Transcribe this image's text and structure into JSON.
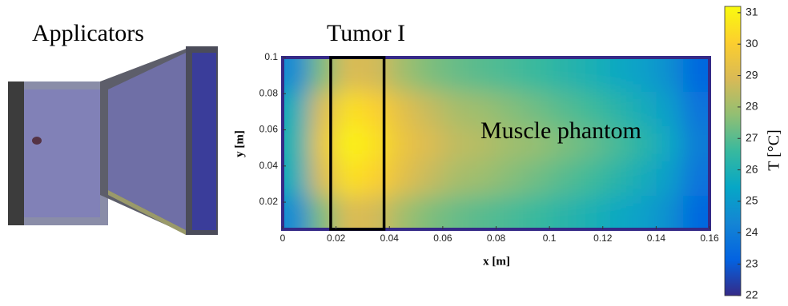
{
  "chart_data": {
    "type": "heatmap",
    "labels": {
      "applicators": "Applicators",
      "tumor": "Tumor I",
      "phantom": "Muscle phantom"
    },
    "xlabel": "x [m]",
    "ylabel": "y [m]",
    "colorbar_label": "T [°C]",
    "x": [
      0.005,
      0.015,
      0.025,
      0.035,
      0.045,
      0.055,
      0.065,
      0.075,
      0.085,
      0.095,
      0.105,
      0.115,
      0.125,
      0.135,
      0.145,
      0.155
    ],
    "y": [
      0.0145,
      0.033,
      0.0525,
      0.072,
      0.0905
    ],
    "z": [
      [
        24.5,
        27.5,
        29.0,
        28.8,
        28.0,
        27.5,
        27.2,
        27.0,
        26.8,
        26.6,
        26.3,
        26.0,
        25.6,
        25.2,
        24.6,
        23.3
      ],
      [
        25.8,
        29.0,
        30.5,
        30.1,
        29.2,
        28.6,
        28.1,
        27.9,
        27.6,
        27.3,
        27.0,
        26.7,
        26.3,
        25.8,
        25.1,
        23.7
      ],
      [
        26.0,
        29.5,
        31.0,
        30.5,
        29.5,
        29.0,
        28.5,
        28.3,
        28.0,
        27.8,
        27.5,
        27.2,
        26.8,
        26.3,
        25.5,
        24.0
      ],
      [
        25.8,
        29.0,
        30.5,
        30.1,
        29.2,
        28.6,
        28.1,
        27.9,
        27.6,
        27.3,
        27.0,
        26.7,
        26.3,
        25.8,
        25.1,
        23.7
      ],
      [
        24.5,
        27.5,
        29.0,
        28.8,
        28.0,
        27.5,
        27.2,
        27.0,
        26.8,
        26.6,
        26.3,
        26.0,
        25.6,
        25.2,
        24.6,
        23.3
      ]
    ],
    "tumor_x": [
      0.018,
      0.038
    ],
    "xlim": [
      0,
      0.16
    ],
    "xticks": [
      0,
      0.02,
      0.04,
      0.06,
      0.08,
      0.1,
      0.12,
      0.14,
      0.16
    ],
    "ylim": [
      0.005,
      0.1
    ],
    "yticks": [
      0.02,
      0.04,
      0.06,
      0.08,
      0.1
    ],
    "clim": [
      22,
      31.2
    ],
    "cticks": [
      22,
      23,
      24,
      25,
      26,
      27,
      28,
      29,
      30,
      31
    ],
    "colormap": [
      "#352a87",
      "#0363e1",
      "#1485d4",
      "#06a7c6",
      "#38b99e",
      "#92bf73",
      "#d9ba56",
      "#fcce2e",
      "#f9fb0e"
    ]
  }
}
